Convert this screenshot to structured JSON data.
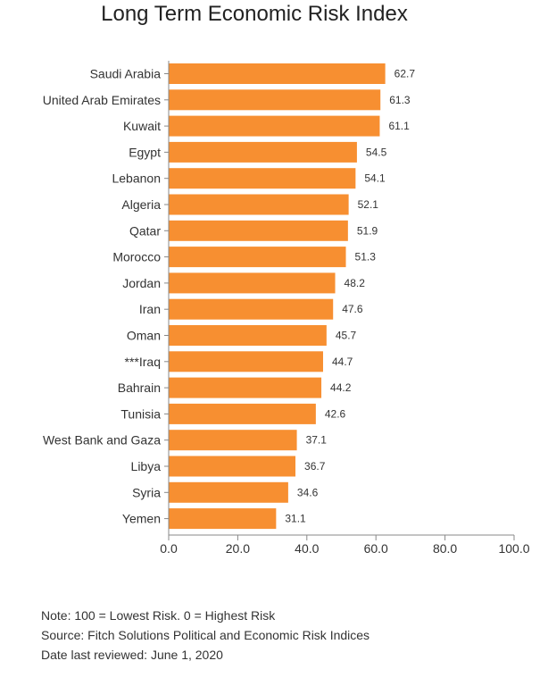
{
  "chart_data": {
    "type": "bar",
    "orientation": "horizontal",
    "title": "Long Term Economic Risk Index",
    "categories": [
      "Saudi Arabia",
      "United Arab Emirates",
      "Kuwait",
      "Egypt",
      "Lebanon",
      "Algeria",
      "Qatar",
      "Morocco",
      "Jordan",
      "Iran",
      "Oman",
      "***Iraq",
      "Bahrain",
      "Tunisia",
      "West Bank and Gaza",
      "Libya",
      "Syria",
      "Yemen"
    ],
    "values": [
      62.7,
      61.3,
      61.1,
      54.5,
      54.1,
      52.1,
      51.9,
      51.3,
      48.2,
      47.6,
      45.7,
      44.7,
      44.2,
      42.6,
      37.1,
      36.7,
      34.6,
      31.1
    ],
    "value_labels": [
      "62.7",
      "61.3",
      "61.1",
      "54.5",
      "54.1",
      "52.1",
      "51.9",
      "51.3",
      "48.2",
      "47.6",
      "45.7",
      "44.7",
      "44.2",
      "42.6",
      "37.1",
      "36.7",
      "34.6",
      "31.1"
    ],
    "xlim": [
      0,
      100
    ],
    "xticks": [
      0,
      20,
      40,
      60,
      80,
      100
    ],
    "xtick_labels": [
      "0.0",
      "20.0",
      "40.0",
      "60.0",
      "80.0",
      "100.0"
    ],
    "xlabel": "",
    "ylabel": "",
    "grid": false,
    "bar_color": "#f78f31"
  },
  "notes": [
    "Note: 100 = Lowest Risk. 0 = Highest Risk",
    "Source: Fitch Solutions Political and Economic Risk Indices",
    "Date last reviewed: June 1, 2020"
  ]
}
